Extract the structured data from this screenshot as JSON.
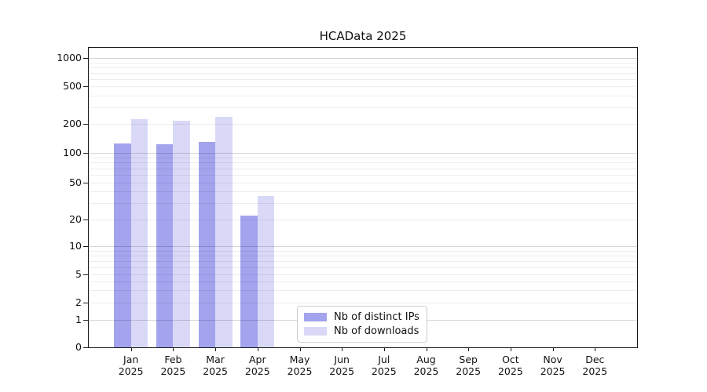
{
  "title": "HCAData 2025",
  "colors": {
    "distinct_ips": "#a3a3ee",
    "downloads": "#d9d9f7",
    "axis": "#1a1a1a",
    "text": "#111111",
    "legend_border": "#cccccc",
    "background": "#ffffff"
  },
  "y_axis": {
    "tick_labels": [
      "0",
      "1",
      "2",
      "5",
      "10",
      "20",
      "50",
      "100",
      "200",
      "500",
      "1000"
    ],
    "tick_values": [
      0,
      1,
      2,
      5,
      10,
      20,
      50,
      100,
      200,
      500,
      1000
    ]
  },
  "x_axis": {
    "months": [
      "Jan",
      "Feb",
      "Mar",
      "Apr",
      "May",
      "Jun",
      "Jul",
      "Aug",
      "Sep",
      "Oct",
      "Nov",
      "Dec"
    ],
    "year": "2025"
  },
  "legend": {
    "items": [
      {
        "label": "Nb of distinct IPs",
        "color_key": "distinct_ips"
      },
      {
        "label": "Nb of downloads",
        "color_key": "downloads"
      }
    ]
  },
  "chart_data": {
    "type": "bar",
    "title": "HCAData 2025",
    "categories": [
      "Jan 2025",
      "Feb 2025",
      "Mar 2025",
      "Apr 2025",
      "May 2025",
      "Jun 2025",
      "Jul 2025",
      "Aug 2025",
      "Sep 2025",
      "Oct 2025",
      "Nov 2025",
      "Dec 2025"
    ],
    "series": [
      {
        "name": "Nb of distinct IPs",
        "color_key": "distinct_ips",
        "values": [
          125,
          123,
          131,
          22,
          0,
          0,
          0,
          0,
          0,
          0,
          0,
          0
        ]
      },
      {
        "name": "Nb of downloads",
        "color_key": "downloads",
        "values": [
          225,
          215,
          236,
          36,
          0,
          0,
          0,
          0,
          0,
          0,
          0,
          0
        ]
      }
    ],
    "xlabel": "",
    "ylabel": "",
    "yscale": "symlog",
    "y_ticks": [
      0,
      1,
      2,
      5,
      10,
      20,
      50,
      100,
      200,
      500,
      1000
    ],
    "ylim": [
      0,
      1300
    ],
    "grid": true,
    "grid_above_bars": true,
    "legend_position": "inside-lower-center"
  }
}
